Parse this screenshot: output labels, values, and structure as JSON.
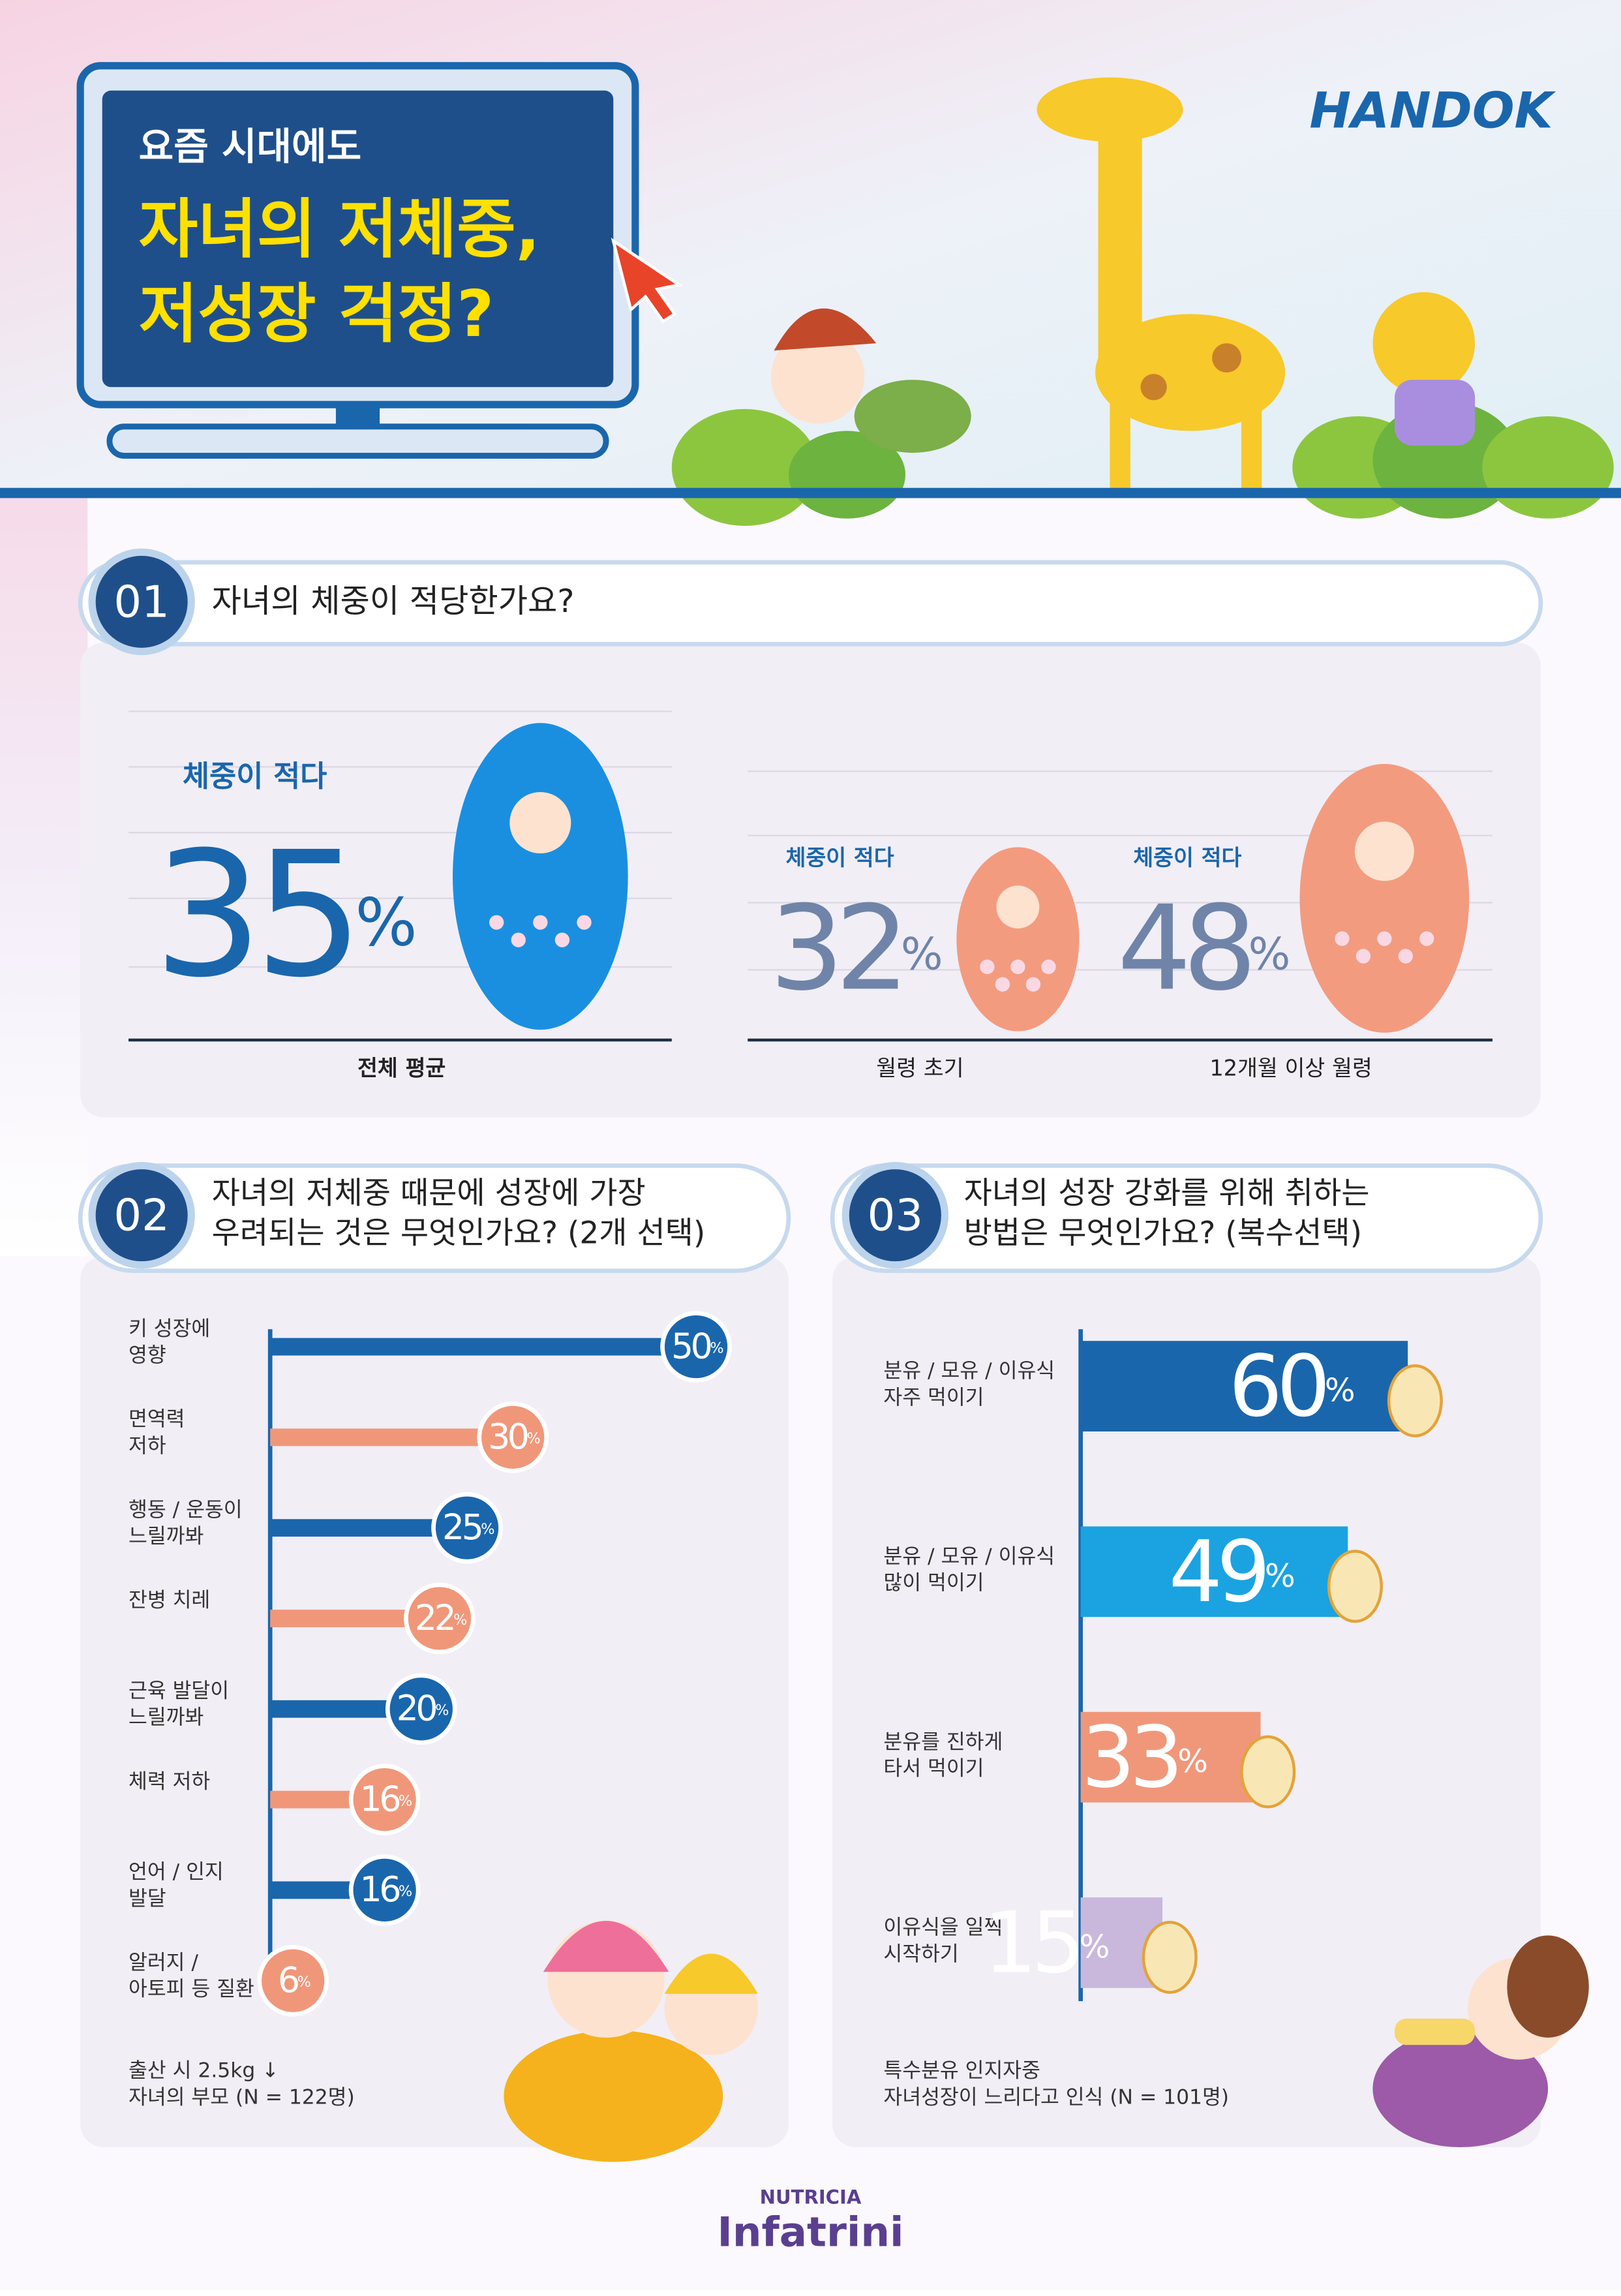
{
  "header": {
    "line1": "요즘 시대에도",
    "line2": "자녀의 저체중,",
    "line3": "저성장 걱정?",
    "brand": "HANDOK"
  },
  "sections": [
    {
      "number": "01",
      "question": "자녀의 체중이 적당한가요?"
    },
    {
      "number": "02",
      "question": "자녀의 저체중 때문에 성장에 가장\n우려되는 것은 무엇인가요? (2개 선택)",
      "note": "출산 시 2.5kg ↓\n자녀의 부모 (N = 122명)"
    },
    {
      "number": "03",
      "question": "자녀의 성장 강화를 위해 취하는\n방법은 무엇인가요? (복수선택)",
      "note": "특수분유 인지자중\n자녀성장이 느리다고 인식 (N = 101명)"
    }
  ],
  "chart_data": [
    {
      "type": "stat",
      "label": "체중이 적다",
      "unit": "%",
      "categories": [
        "전체 평균",
        "월령 초기",
        "12개월 이상 월령"
      ],
      "values": [
        35,
        32,
        48
      ],
      "colors": [
        "#1a66ac",
        "#6f84a8",
        "#6f84a8"
      ]
    },
    {
      "type": "bar",
      "orientation": "horizontal",
      "unit": "%",
      "categories": [
        "키 성장에\n영향",
        "면역력\n저하",
        "행동 / 운동이\n느릴까봐",
        "잔병 치레",
        "근육 발달이\n느릴까봐",
        "체력 저하",
        "언어 / 인지\n발달",
        "알러지 /\n아토피 등 질환"
      ],
      "values": [
        50,
        30,
        25,
        22,
        20,
        16,
        16,
        6
      ],
      "colors": [
        "#1a66ac",
        "#f0977a",
        "#1a66ac",
        "#f0977a",
        "#1a66ac",
        "#f0977a",
        "#1a66ac",
        "#f0977a"
      ],
      "xlim": [
        0,
        55
      ]
    },
    {
      "type": "bar",
      "orientation": "horizontal",
      "unit": "%",
      "categories": [
        "분유 / 모유 / 이유식\n자주 먹이기",
        "분유 / 모유 / 이유식\n많이 먹이기",
        "분유를 진하게\n타서 먹이기",
        "이유식을 일찍\n시작하기"
      ],
      "values": [
        60,
        49,
        33,
        15
      ],
      "colors": [
        "#1a66ac",
        "#1aa3e0",
        "#f0977a",
        "#c9b8dc"
      ],
      "xlim": [
        0,
        75
      ]
    }
  ],
  "footer": {
    "maker": "NUTRICIA",
    "product": "Infatrini"
  }
}
